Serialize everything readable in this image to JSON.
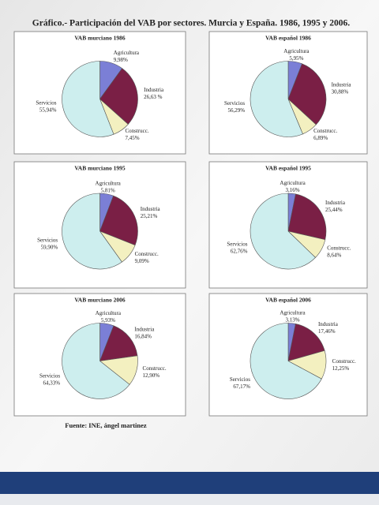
{
  "title": "Gráfico.- Participación del VAB por sectores. Murcia y España. 1986, 1995 y 2006.",
  "source": "Fuente: INE, ángel martinez",
  "chart_data": [
    {
      "type": "pie",
      "title": "VAB murciano 1986",
      "categories": [
        "Agricultura",
        "Industria",
        "Construcc.",
        "Servicios"
      ],
      "values": [
        9.98,
        26.63,
        7.45,
        55.94
      ],
      "value_labels": [
        "9,98%",
        "26,63 %",
        "7,45%",
        "55,94%"
      ],
      "colors": [
        "#7b7fd6",
        "#7a1f45",
        "#f3f0c0",
        "#cdeeee"
      ]
    },
    {
      "type": "pie",
      "title": "VAB español 1986",
      "categories": [
        "Agricultura",
        "Industria",
        "Construcc.",
        "Servicios"
      ],
      "values": [
        5.95,
        30.88,
        6.89,
        56.29
      ],
      "value_labels": [
        "5,95%",
        "30,88%",
        "6,89%",
        "56,29%"
      ],
      "colors": [
        "#7b7fd6",
        "#7a1f45",
        "#f3f0c0",
        "#cdeeee"
      ]
    },
    {
      "type": "pie",
      "title": "VAB murciano 1995",
      "categories": [
        "Agricultura",
        "Industria",
        "Construcc.",
        "Servicios"
      ],
      "values": [
        5.81,
        25.21,
        9.09,
        59.9
      ],
      "value_labels": [
        "5,81%",
        "25,21%",
        "9,09%",
        "59,90%"
      ],
      "colors": [
        "#7b7fd6",
        "#7a1f45",
        "#f3f0c0",
        "#cdeeee"
      ]
    },
    {
      "type": "pie",
      "title": "VAB español 1995",
      "categories": [
        "Agricultura",
        "Industria",
        "Construcc.",
        "Servicios"
      ],
      "values": [
        3.16,
        25.44,
        8.64,
        62.76
      ],
      "value_labels": [
        "3,16%",
        "25,44%",
        "8,64%",
        "62,76%"
      ],
      "colors": [
        "#7b7fd6",
        "#7a1f45",
        "#f3f0c0",
        "#cdeeee"
      ]
    },
    {
      "type": "pie",
      "title": "VAB murciano 2006",
      "categories": [
        "Agricultura",
        "Industria",
        "Construcc.",
        "Servicios"
      ],
      "values": [
        5.93,
        16.84,
        12.9,
        64.33
      ],
      "value_labels": [
        "5,93%",
        "16,84%",
        "12,90%",
        "64,33%"
      ],
      "colors": [
        "#7b7fd6",
        "#7a1f45",
        "#f3f0c0",
        "#cdeeee"
      ]
    },
    {
      "type": "pie",
      "title": "VAB español 2006",
      "categories": [
        "Agricultura",
        "Industria",
        "Construcc.",
        "Servicios"
      ],
      "values": [
        3.13,
        17.46,
        12.25,
        67.17
      ],
      "value_labels": [
        "3,13%",
        "17,46%",
        "12,25%",
        "67,17%"
      ],
      "colors": [
        "#7b7fd6",
        "#7a1f45",
        "#f3f0c0",
        "#cdeeee"
      ]
    }
  ]
}
